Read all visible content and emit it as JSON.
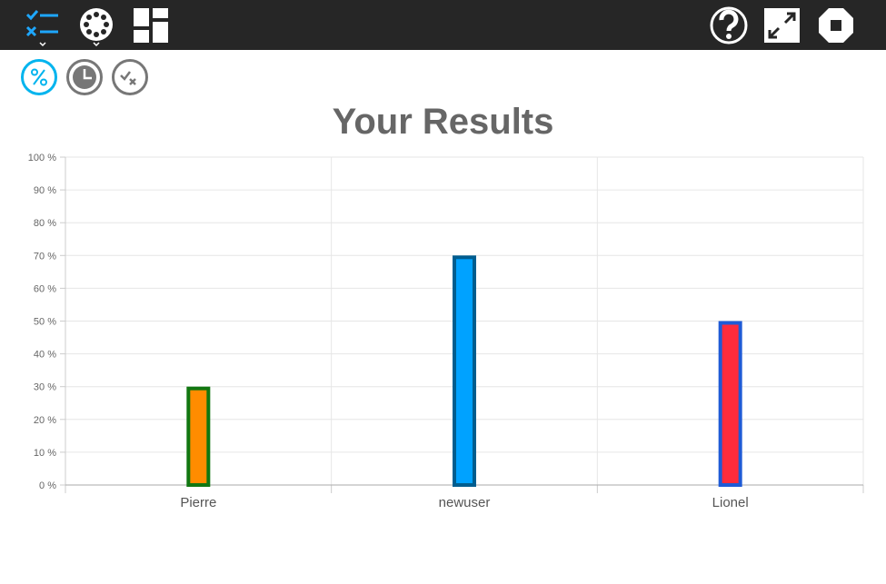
{
  "toolbar": {
    "left_icons": [
      "task-list-icon",
      "palette-icon",
      "dashboard-layout-icon"
    ],
    "right_icons": [
      "help-icon",
      "fullscreen-icon",
      "stop-icon"
    ]
  },
  "modes": [
    {
      "name": "percent-mode",
      "icon": "percent-icon",
      "active": true
    },
    {
      "name": "time-mode",
      "icon": "clock-icon",
      "active": false
    },
    {
      "name": "answers-mode",
      "icon": "check-x-icon",
      "active": false
    }
  ],
  "chart_data": {
    "type": "bar",
    "title": "Your Results",
    "categories": [
      "Pierre",
      "newuser",
      "Lionel"
    ],
    "values": [
      30,
      70,
      50
    ],
    "fill_colors": [
      "#ff8c00",
      "#00a2ff",
      "#ff2c3c"
    ],
    "border_colors": [
      "#117711",
      "#005d8f",
      "#1f5bd6"
    ],
    "ylim": [
      0,
      100
    ],
    "yticks": [
      0,
      10,
      20,
      30,
      40,
      50,
      60,
      70,
      80,
      90,
      100
    ],
    "ytick_suffix": " %",
    "grid": true,
    "legend": "none"
  },
  "colors": {
    "topbar": "#262626",
    "active_accent": "#00b4ee",
    "inactive": "#777777",
    "title": "#666666"
  }
}
